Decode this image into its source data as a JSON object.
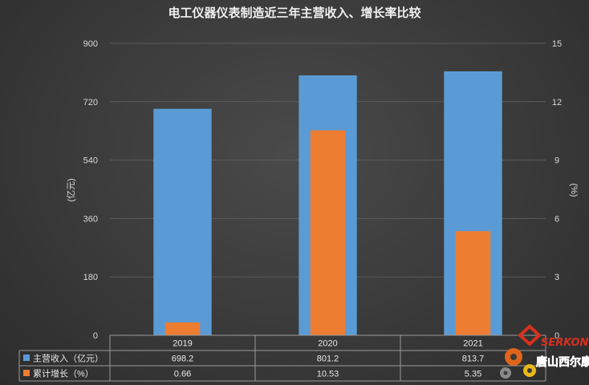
{
  "chart_data": {
    "type": "bar",
    "title": "电工仪器仪表制造近三年主营收入、增长率比较",
    "categories": [
      "2019",
      "2020",
      "2021"
    ],
    "series": [
      {
        "name": "主营收入（亿元）",
        "axis": "left",
        "values": [
          698.2,
          801.2,
          813.7
        ],
        "color": "#5b9bd5"
      },
      {
        "name": "累计增长（%）",
        "axis": "right",
        "values": [
          0.66,
          10.53,
          5.35
        ],
        "color": "#ed7d31"
      }
    ],
    "y_left": {
      "label": "(亿元)",
      "range": [
        0,
        900
      ],
      "ticks": [
        "0",
        "180",
        "360",
        "540",
        "720",
        "900"
      ]
    },
    "y_right": {
      "label": "(%)",
      "range": [
        0,
        15
      ],
      "ticks": [
        "0",
        "3",
        "6",
        "9",
        "12",
        "15"
      ]
    },
    "data_table": {
      "rows": [
        {
          "label": "主营收入（亿元）",
          "values": [
            "698.2",
            "801.2",
            "813.7"
          ]
        },
        {
          "label": "累计增长（%）",
          "values": [
            "0.66",
            "10.53",
            "5.35"
          ]
        }
      ]
    },
    "grid": true
  },
  "logo": {
    "brand": "SERKON",
    "name_cn": "唐山西尔康"
  }
}
